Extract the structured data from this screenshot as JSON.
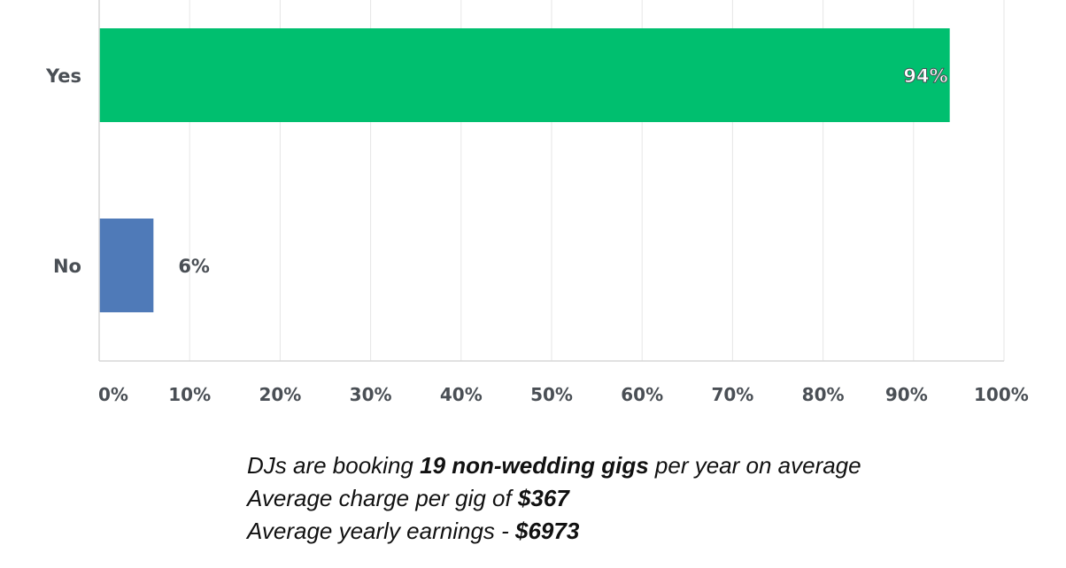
{
  "chart_data": {
    "type": "bar",
    "orientation": "horizontal",
    "categories": [
      "Yes",
      "No"
    ],
    "values": [
      94,
      6
    ],
    "value_labels": [
      "94%",
      "6%"
    ],
    "xlim": [
      0,
      100
    ],
    "x_ticks": [
      "0%",
      "10%",
      "20%",
      "30%",
      "40%",
      "50%",
      "60%",
      "70%",
      "80%",
      "90%",
      "100%"
    ],
    "grid": true,
    "colors": [
      "#00bf6f",
      "#4f7ab8"
    ]
  },
  "caption": {
    "line1": {
      "pre": "DJs are booking ",
      "bold": "19 non-wedding gigs",
      "post": " per year on average"
    },
    "line2": {
      "pre": "Average charge per gig of ",
      "bold": "$367"
    },
    "line3": {
      "pre": "Average yearly earnings - ",
      "bold": "$6973"
    }
  }
}
